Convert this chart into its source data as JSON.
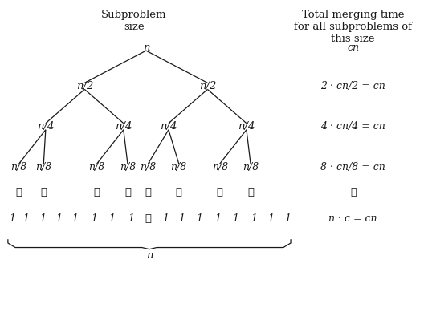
{
  "bg_color": "#ffffff",
  "text_color": "#1a1a1a",
  "header_left": "Subproblem\nsize",
  "header_right": "Total merging time\nfor all subproblems of\nthis size",
  "node_labels": {
    "L0": "n",
    "L1": "n/2",
    "L2": "n/4",
    "L3": "n/8"
  },
  "right_labels": [
    "cn",
    "2 · cn/2 = cn",
    "4 · cn/4 = cn",
    "8 · cn/8 = cn",
    "⋮",
    "n · c = cn"
  ],
  "leaf_label": "1",
  "dots_char": "⋮",
  "cdots_char": "⋯",
  "brace_n": "n"
}
